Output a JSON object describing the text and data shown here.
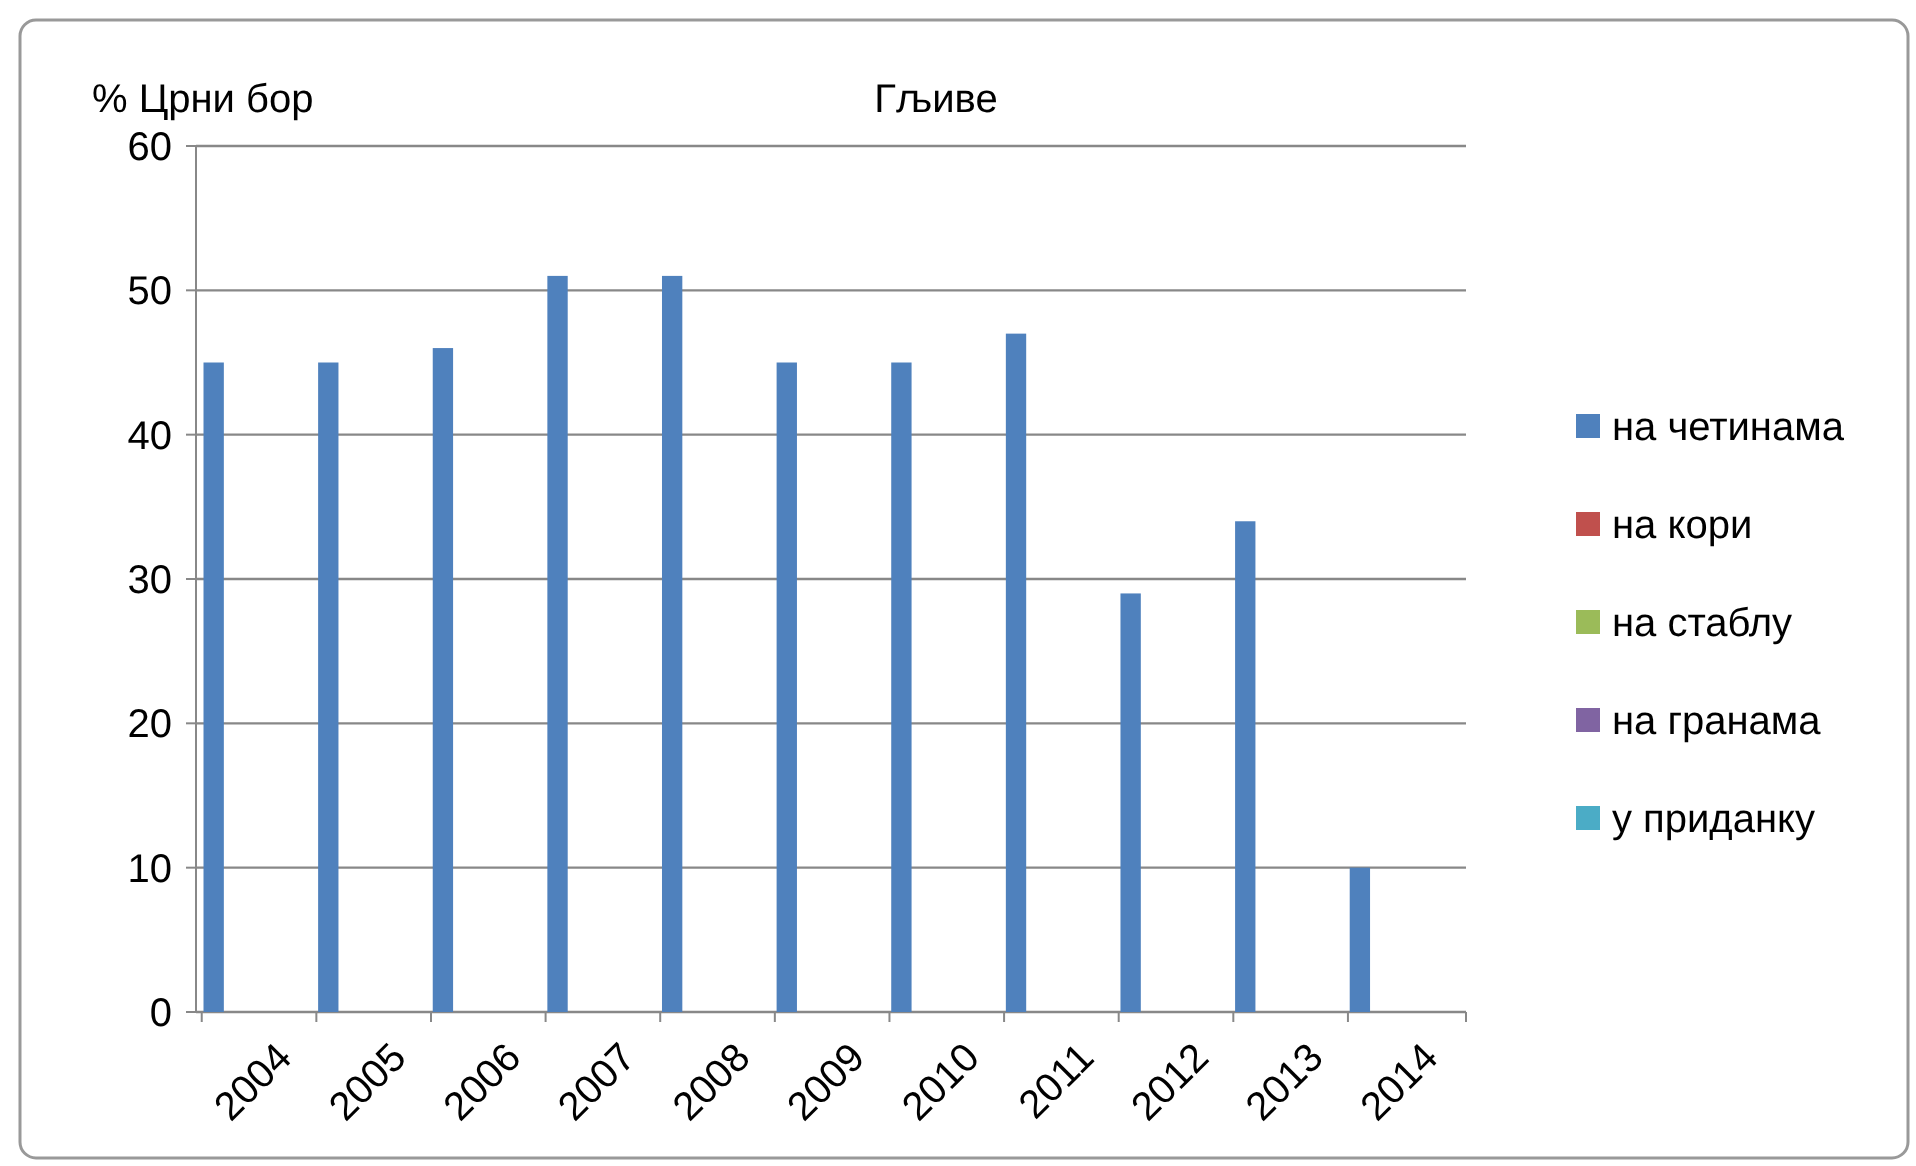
{
  "chart_data": {
    "type": "bar",
    "title": "Гљиве",
    "ylabel": "% Црни бор",
    "categories": [
      "2004",
      "2005",
      "2006",
      "2007",
      "2008",
      "2009",
      "2010",
      "2011",
      "2012",
      "2013",
      "2014"
    ],
    "series": [
      {
        "name": "на четинама",
        "color": "#4f81bd",
        "values": [
          45,
          45,
          46,
          51,
          51,
          45,
          45,
          47,
          29,
          34,
          10
        ]
      },
      {
        "name": "на кори",
        "color": "#c0504d",
        "values": [
          0,
          0,
          0,
          0,
          0,
          0,
          0,
          0,
          0,
          0,
          0
        ]
      },
      {
        "name": "на стаблу",
        "color": "#9bbb59",
        "values": [
          0,
          0,
          0,
          0,
          0,
          0,
          0,
          0,
          0,
          0,
          0
        ]
      },
      {
        "name": "на гранама",
        "color": "#8064a2",
        "values": [
          0,
          0,
          0,
          0,
          0,
          0,
          0,
          0,
          0,
          0,
          0
        ]
      },
      {
        "name": "у приданку",
        "color": "#4bacc6",
        "values": [
          0,
          0,
          0,
          0,
          0,
          0,
          0,
          0,
          0,
          0,
          0
        ]
      }
    ],
    "ylim": [
      0,
      60
    ],
    "yticks": [
      0,
      10,
      20,
      30,
      40,
      50,
      60
    ],
    "grid": "y",
    "legend": "right"
  }
}
